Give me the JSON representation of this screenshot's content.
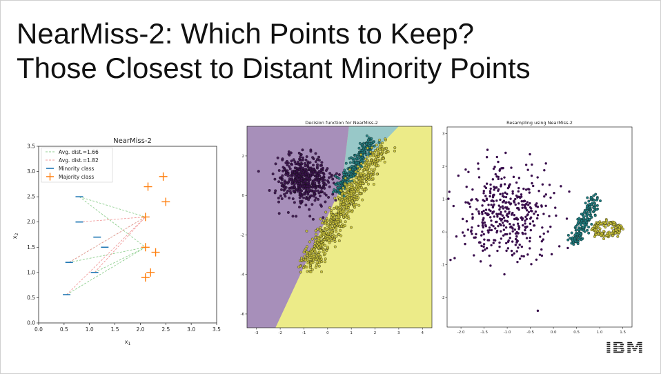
{
  "slide": {
    "title_line1": "NearMiss-2: Which Points to Keep?",
    "title_line2": "Those Closest to Distant Minority Points",
    "logo": "IBM"
  },
  "chart_data": [
    {
      "type": "scatter",
      "title": "NearMiss-2",
      "xlabel": "x1",
      "ylabel": "x2",
      "xlim": [
        0.0,
        3.5
      ],
      "ylim": [
        0.0,
        3.5
      ],
      "xticks": [
        "0.0",
        "0.5",
        "1.0",
        "1.5",
        "2.0",
        "2.5",
        "3.0",
        "3.5"
      ],
      "yticks": [
        "0.0",
        "0.5",
        "1.0",
        "1.5",
        "2.0",
        "2.5",
        "3.0",
        "3.5"
      ],
      "legend_position": "top-left",
      "legend": [
        "Avg. dist.=1.66",
        "Avg. dist.=1.82",
        "Minority class",
        "Majority class"
      ],
      "colors": {
        "minority": "#1f77b4",
        "majority": "#ff7f0e",
        "dist_green": "#8fcf8f",
        "dist_red": "#f19999"
      },
      "minority": [
        [
          0.8,
          2.5
        ],
        [
          0.8,
          2.0
        ],
        [
          1.15,
          1.7
        ],
        [
          1.3,
          1.5
        ],
        [
          0.6,
          1.2
        ],
        [
          1.1,
          1.0
        ],
        [
          0.55,
          0.56
        ]
      ],
      "majority": [
        [
          2.1,
          2.1
        ],
        [
          2.1,
          1.5
        ],
        [
          2.15,
          2.7
        ],
        [
          2.45,
          2.9
        ],
        [
          2.5,
          2.4
        ],
        [
          2.3,
          1.4
        ],
        [
          2.1,
          0.9
        ],
        [
          2.2,
          1.0
        ]
      ],
      "green_lines": [
        [
          [
            0.8,
            2.5
          ],
          [
            2.1,
            2.1
          ]
        ],
        [
          [
            0.8,
            2.5
          ],
          [
            2.1,
            1.5
          ]
        ],
        [
          [
            0.6,
            1.2
          ],
          [
            2.1,
            2.1
          ]
        ],
        [
          [
            0.6,
            1.2
          ],
          [
            2.1,
            1.5
          ]
        ],
        [
          [
            0.55,
            0.56
          ],
          [
            2.1,
            1.5
          ]
        ],
        [
          [
            1.1,
            1.0
          ],
          [
            2.1,
            1.5
          ]
        ]
      ],
      "red_lines": [
        [
          [
            0.55,
            0.56
          ],
          [
            2.1,
            2.1
          ]
        ],
        [
          [
            1.1,
            1.0
          ],
          [
            2.1,
            2.1
          ]
        ],
        [
          [
            0.6,
            1.2
          ],
          [
            2.1,
            2.1
          ]
        ],
        [
          [
            0.8,
            2.0
          ],
          [
            2.1,
            2.1
          ]
        ]
      ]
    },
    {
      "type": "scatter",
      "title": "Decision function for NearMiss-2",
      "xlim": [
        -3.4,
        4.4
      ],
      "ylim": [
        -6.7,
        3.5
      ],
      "xticks": [
        "-3",
        "-2",
        "-1",
        "0",
        "1",
        "2",
        "3",
        "4"
      ],
      "yticks": [
        "-6",
        "-4",
        "-2",
        "0",
        "2"
      ],
      "regions": {
        "purple": "#a78fba",
        "teal": "#98c8c8",
        "yellow": "#eceb88"
      },
      "boundary_purple_upper": [
        [
          -2.2,
          -6.7
        ],
        [
          0.6,
          0.5
        ],
        [
          0.9,
          3.5
        ]
      ],
      "boundary_teal_yellow": [
        [
          0.6,
          0.5
        ],
        [
          3.0,
          3.5
        ]
      ],
      "clusters": [
        {
          "name": "purple",
          "color": "#3a0f4d",
          "center": [
            -1.0,
            0.8
          ],
          "spread": [
            0.55,
            0.6
          ],
          "count": 500
        },
        {
          "name": "teal",
          "color": "#1e7d80",
          "center": [
            1.0,
            1.5
          ],
          "spread": [
            0.4,
            0.45
          ],
          "count": 260
        },
        {
          "name": "yellow",
          "color": "#c9c23a",
          "center": [
            0.9,
            -0.6
          ],
          "spread": [
            0.9,
            0.9
          ],
          "count": 700
        }
      ]
    },
    {
      "type": "scatter",
      "title": "Resampling using NearMiss-2",
      "xlim": [
        -2.3,
        1.7
      ],
      "ylim": [
        -2.9,
        3.2
      ],
      "xticks": [
        "-2.0",
        "-1.5",
        "-1.0",
        "-0.5",
        "0.0",
        "0.5",
        "1.0",
        "1.5"
      ],
      "yticks": [
        "-2",
        "-1",
        "0",
        "1",
        "2",
        "3"
      ],
      "clusters": [
        {
          "name": "purple",
          "color": "#3a0f4d",
          "center": [
            -1.0,
            0.55
          ],
          "spread": [
            0.48,
            0.7
          ],
          "count": 420
        },
        {
          "name": "teal",
          "color": "#1e7d80",
          "center": [
            0.7,
            0.35
          ],
          "spread": [
            0.12,
            0.3
          ],
          "count": 180
        },
        {
          "name": "yellow",
          "color": "#c9c23a",
          "center": [
            1.15,
            0.15
          ],
          "spread": [
            0.22,
            0.15
          ],
          "count": 160
        }
      ]
    }
  ]
}
